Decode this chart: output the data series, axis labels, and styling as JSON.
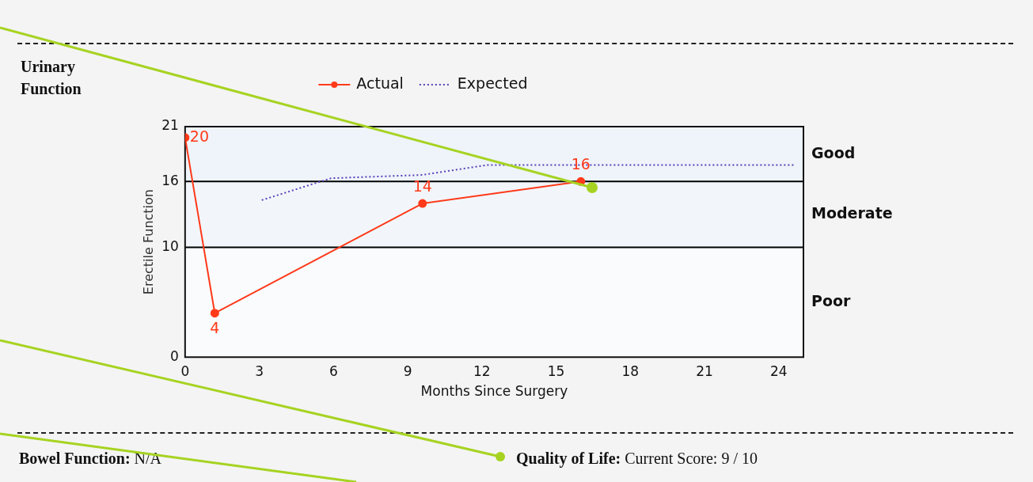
{
  "chart_data": {
    "type": "line",
    "xlabel": "Months Since Surgery",
    "ylabel": "Erectile Function",
    "legend": "top",
    "xlim": [
      0,
      25
    ],
    "xticks": [
      0,
      3,
      6,
      9,
      12,
      15,
      18,
      21,
      24
    ],
    "ylim": [
      0,
      21
    ],
    "yticks": [
      0,
      10,
      16,
      21
    ],
    "grid": false,
    "series": [
      {
        "name": "Actual",
        "color": "#ff3a1a",
        "marker": "circle",
        "line_style": "solid",
        "x": [
          0,
          1.2,
          9.6,
          16
        ],
        "values": [
          20,
          4,
          14,
          16
        ],
        "value_labels": [
          "20",
          "4",
          "14",
          "16"
        ]
      },
      {
        "name": "Expected",
        "color": "#5a3fb8",
        "marker": "none",
        "line_style": "dotted",
        "x": [
          3.1,
          5.9,
          9.6,
          12.2,
          24.6
        ],
        "values": [
          14.3,
          16.3,
          16.6,
          17.5,
          17.5
        ]
      }
    ],
    "bands": [
      {
        "axis": "y",
        "from": 16,
        "to": 21,
        "label": "Good",
        "color": "#eef4fa"
      },
      {
        "axis": "y",
        "from": 10,
        "to": 16,
        "label": "Moderate",
        "color": "#f2f6fb"
      },
      {
        "axis": "y",
        "from": 0,
        "to": 10,
        "label": "Poor",
        "color": "#f9fbfd"
      }
    ],
    "ref_lines": [
      {
        "axis": "y",
        "value": 16,
        "color": "#000000"
      },
      {
        "axis": "y",
        "value": 10,
        "color": "#000000"
      }
    ],
    "annotations": [
      "Urinary Function",
      "Bowel Function:",
      "N/A",
      "Quality of Life:",
      "Current Score: 9 / 10"
    ]
  }
}
